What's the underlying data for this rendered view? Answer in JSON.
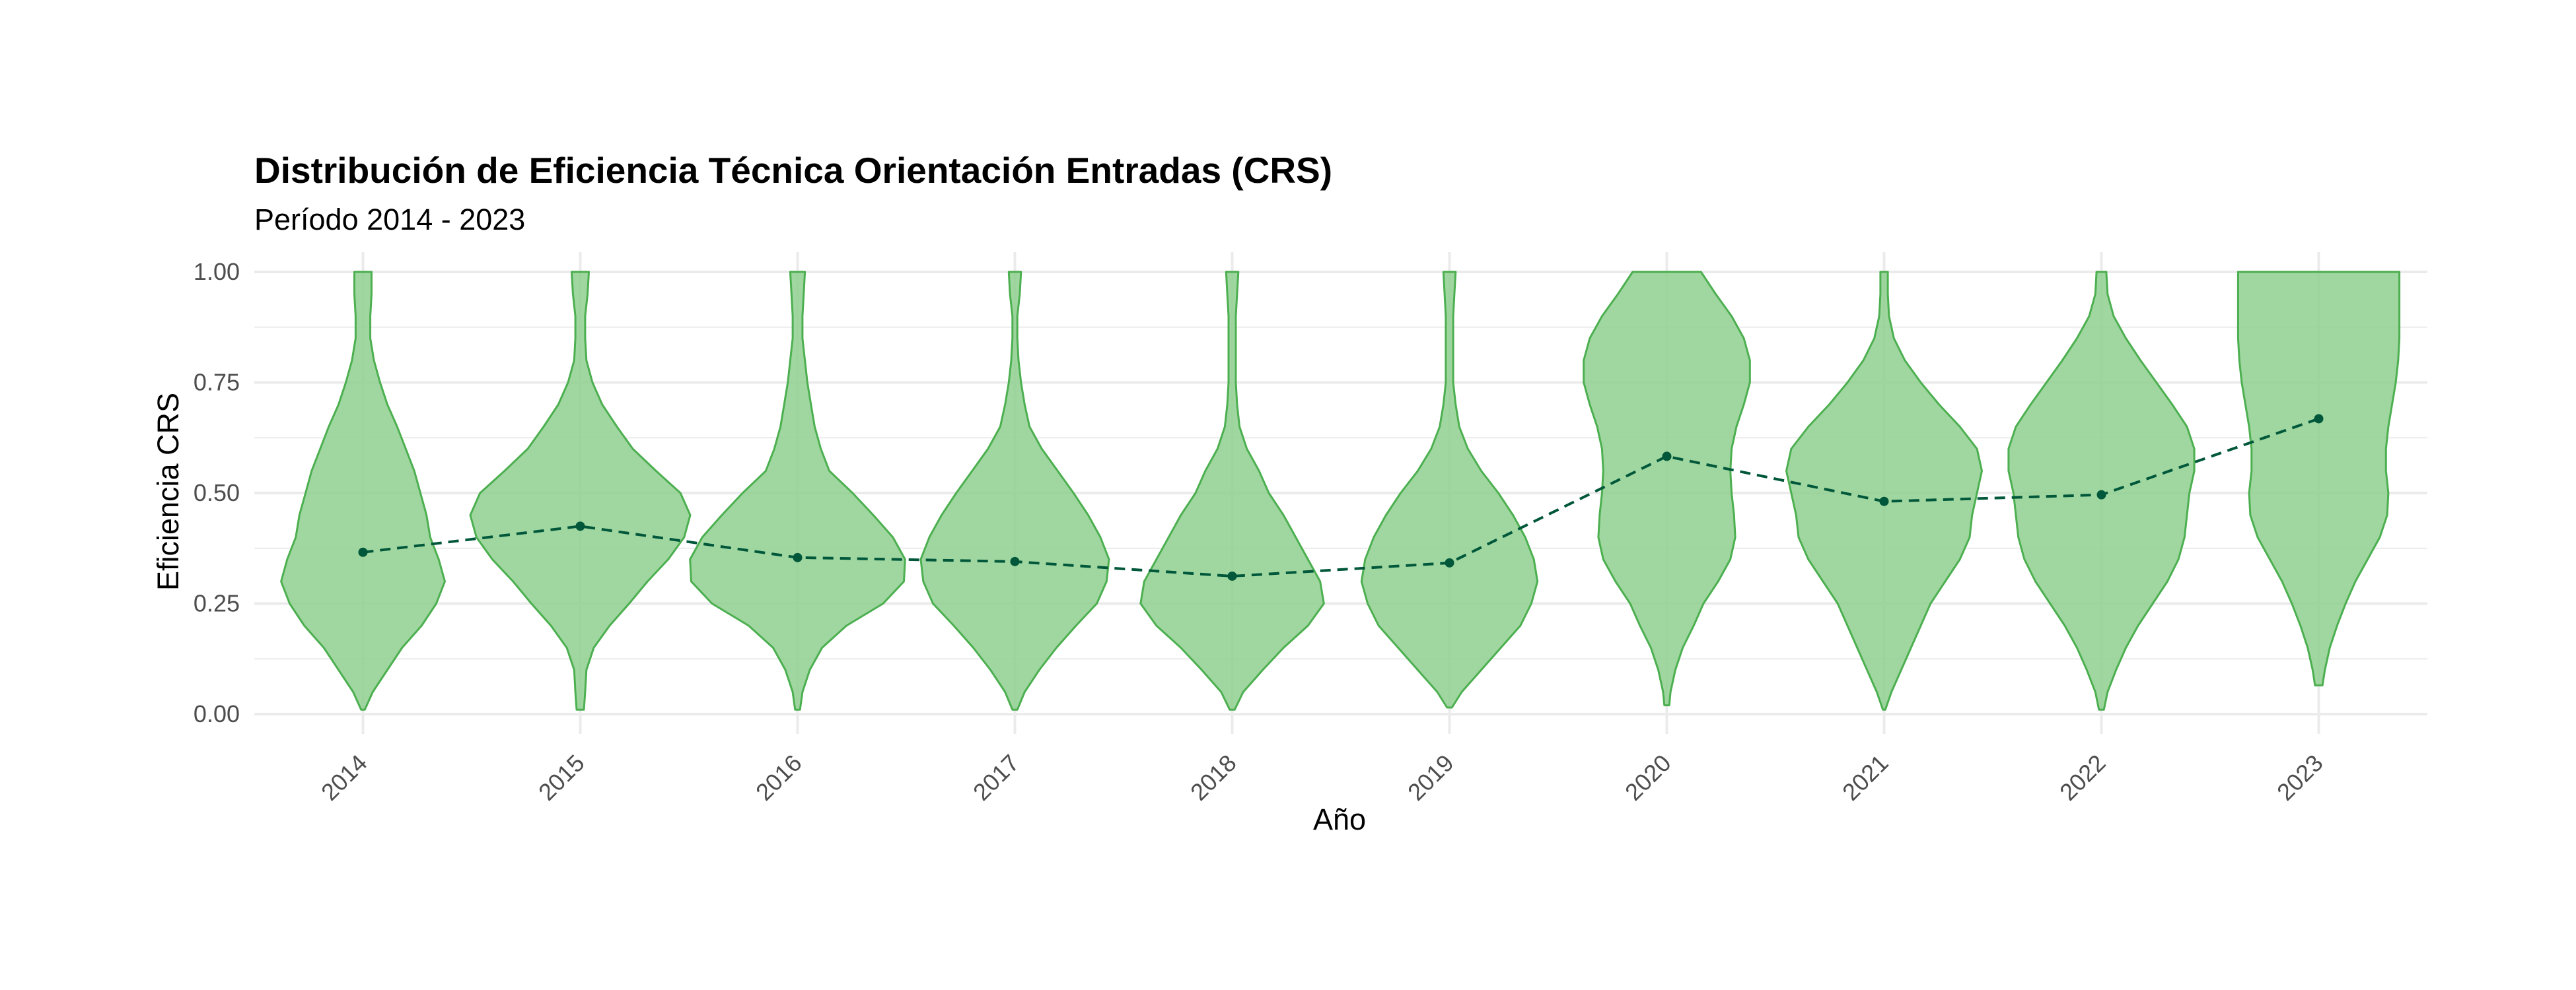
{
  "chart_data": {
    "type": "violin",
    "title": "Distribución de Eficiencia Técnica Orientación Entradas (CRS)",
    "subtitle": "Período 2014 - 2023",
    "xlabel": "Año",
    "ylabel": "Eficiencia CRS",
    "categories": [
      "2014",
      "2015",
      "2016",
      "2017",
      "2018",
      "2019",
      "2020",
      "2021",
      "2022",
      "2023"
    ],
    "ylim": [
      0,
      1
    ],
    "yticks": [
      0,
      0.25,
      0.5,
      0.75,
      1
    ],
    "ytick_labels": [
      "0.00",
      "0.25",
      "0.50",
      "0.75",
      "1.00"
    ],
    "grid": true,
    "colors": {
      "violin_fill": "#8fd08f",
      "violin_stroke": "#4caf50",
      "mean_line": "#00573a",
      "grid": "#ebebeb"
    },
    "mean_series": [
      0.366,
      0.425,
      0.354,
      0.345,
      0.312,
      0.342,
      0.583,
      0.481,
      0.496,
      0.668
    ],
    "violins": [
      {
        "year": "2014",
        "ymin": 0.01,
        "ymax": 1.0,
        "profile": [
          [
            0.01,
            0.015
          ],
          [
            0.05,
            0.08
          ],
          [
            0.1,
            0.2
          ],
          [
            0.15,
            0.32
          ],
          [
            0.2,
            0.48
          ],
          [
            0.25,
            0.6
          ],
          [
            0.3,
            0.67
          ],
          [
            0.35,
            0.62
          ],
          [
            0.4,
            0.55
          ],
          [
            0.45,
            0.52
          ],
          [
            0.5,
            0.47
          ],
          [
            0.55,
            0.42
          ],
          [
            0.6,
            0.35
          ],
          [
            0.65,
            0.28
          ],
          [
            0.7,
            0.2
          ],
          [
            0.75,
            0.14
          ],
          [
            0.8,
            0.09
          ],
          [
            0.85,
            0.06
          ],
          [
            0.9,
            0.06
          ],
          [
            0.95,
            0.07
          ],
          [
            1.0,
            0.07
          ]
        ]
      },
      {
        "year": "2015",
        "ymin": 0.01,
        "ymax": 1.0,
        "profile": [
          [
            0.01,
            0.03
          ],
          [
            0.05,
            0.04
          ],
          [
            0.1,
            0.05
          ],
          [
            0.15,
            0.11
          ],
          [
            0.2,
            0.24
          ],
          [
            0.25,
            0.4
          ],
          [
            0.3,
            0.55
          ],
          [
            0.35,
            0.72
          ],
          [
            0.4,
            0.85
          ],
          [
            0.45,
            0.9
          ],
          [
            0.5,
            0.82
          ],
          [
            0.55,
            0.62
          ],
          [
            0.6,
            0.43
          ],
          [
            0.65,
            0.3
          ],
          [
            0.7,
            0.18
          ],
          [
            0.75,
            0.1
          ],
          [
            0.8,
            0.05
          ],
          [
            0.85,
            0.04
          ],
          [
            0.9,
            0.04
          ],
          [
            0.95,
            0.06
          ],
          [
            1.0,
            0.07
          ]
        ]
      },
      {
        "year": "2016",
        "ymin": 0.01,
        "ymax": 1.0,
        "profile": [
          [
            0.01,
            0.02
          ],
          [
            0.05,
            0.04
          ],
          [
            0.1,
            0.1
          ],
          [
            0.15,
            0.2
          ],
          [
            0.2,
            0.4
          ],
          [
            0.25,
            0.7
          ],
          [
            0.3,
            0.87
          ],
          [
            0.35,
            0.88
          ],
          [
            0.4,
            0.78
          ],
          [
            0.45,
            0.62
          ],
          [
            0.5,
            0.45
          ],
          [
            0.55,
            0.26
          ],
          [
            0.6,
            0.19
          ],
          [
            0.65,
            0.14
          ],
          [
            0.7,
            0.11
          ],
          [
            0.75,
            0.08
          ],
          [
            0.8,
            0.06
          ],
          [
            0.85,
            0.04
          ],
          [
            0.9,
            0.04
          ],
          [
            0.95,
            0.05
          ],
          [
            1.0,
            0.06
          ]
        ]
      },
      {
        "year": "2017",
        "ymin": 0.01,
        "ymax": 1.0,
        "profile": [
          [
            0.01,
            0.02
          ],
          [
            0.05,
            0.08
          ],
          [
            0.1,
            0.2
          ],
          [
            0.15,
            0.34
          ],
          [
            0.2,
            0.5
          ],
          [
            0.25,
            0.67
          ],
          [
            0.3,
            0.75
          ],
          [
            0.35,
            0.77
          ],
          [
            0.4,
            0.7
          ],
          [
            0.45,
            0.6
          ],
          [
            0.5,
            0.48
          ],
          [
            0.55,
            0.35
          ],
          [
            0.6,
            0.22
          ],
          [
            0.65,
            0.12
          ],
          [
            0.7,
            0.08
          ],
          [
            0.75,
            0.05
          ],
          [
            0.8,
            0.03
          ],
          [
            0.85,
            0.02
          ],
          [
            0.9,
            0.02
          ],
          [
            0.95,
            0.04
          ],
          [
            1.0,
            0.05
          ]
        ]
      },
      {
        "year": "2018",
        "ymin": 0.01,
        "ymax": 1.0,
        "profile": [
          [
            0.01,
            0.02
          ],
          [
            0.05,
            0.09
          ],
          [
            0.1,
            0.25
          ],
          [
            0.15,
            0.42
          ],
          [
            0.2,
            0.62
          ],
          [
            0.25,
            0.75
          ],
          [
            0.3,
            0.72
          ],
          [
            0.35,
            0.62
          ],
          [
            0.4,
            0.52
          ],
          [
            0.45,
            0.42
          ],
          [
            0.5,
            0.3
          ],
          [
            0.55,
            0.22
          ],
          [
            0.6,
            0.12
          ],
          [
            0.65,
            0.06
          ],
          [
            0.7,
            0.04
          ],
          [
            0.75,
            0.03
          ],
          [
            0.8,
            0.03
          ],
          [
            0.85,
            0.03
          ],
          [
            0.9,
            0.03
          ],
          [
            0.95,
            0.04
          ],
          [
            1.0,
            0.05
          ]
        ]
      },
      {
        "year": "2019",
        "ymin": 0.015,
        "ymax": 1.0,
        "profile": [
          [
            0.015,
            0.02
          ],
          [
            0.05,
            0.1
          ],
          [
            0.1,
            0.26
          ],
          [
            0.15,
            0.42
          ],
          [
            0.2,
            0.58
          ],
          [
            0.25,
            0.67
          ],
          [
            0.3,
            0.72
          ],
          [
            0.35,
            0.69
          ],
          [
            0.4,
            0.62
          ],
          [
            0.45,
            0.52
          ],
          [
            0.5,
            0.4
          ],
          [
            0.55,
            0.26
          ],
          [
            0.6,
            0.15
          ],
          [
            0.65,
            0.08
          ],
          [
            0.7,
            0.05
          ],
          [
            0.75,
            0.03
          ],
          [
            0.8,
            0.03
          ],
          [
            0.85,
            0.03
          ],
          [
            0.9,
            0.03
          ],
          [
            0.95,
            0.04
          ],
          [
            1.0,
            0.05
          ]
        ]
      },
      {
        "year": "2020",
        "ymin": 0.02,
        "ymax": 1.0,
        "profile": [
          [
            0.02,
            0.02
          ],
          [
            0.05,
            0.03
          ],
          [
            0.1,
            0.07
          ],
          [
            0.15,
            0.13
          ],
          [
            0.2,
            0.22
          ],
          [
            0.25,
            0.3
          ],
          [
            0.3,
            0.42
          ],
          [
            0.35,
            0.52
          ],
          [
            0.4,
            0.56
          ],
          [
            0.45,
            0.55
          ],
          [
            0.5,
            0.53
          ],
          [
            0.55,
            0.52
          ],
          [
            0.6,
            0.53
          ],
          [
            0.65,
            0.57
          ],
          [
            0.7,
            0.63
          ],
          [
            0.75,
            0.68
          ],
          [
            0.8,
            0.68
          ],
          [
            0.85,
            0.63
          ],
          [
            0.9,
            0.53
          ],
          [
            0.95,
            0.4
          ],
          [
            1.0,
            0.28
          ]
        ]
      },
      {
        "year": "2021",
        "ymin": 0.01,
        "ymax": 1.0,
        "profile": [
          [
            0.01,
            0.01
          ],
          [
            0.05,
            0.06
          ],
          [
            0.1,
            0.14
          ],
          [
            0.15,
            0.22
          ],
          [
            0.2,
            0.3
          ],
          [
            0.25,
            0.38
          ],
          [
            0.3,
            0.5
          ],
          [
            0.35,
            0.62
          ],
          [
            0.4,
            0.7
          ],
          [
            0.45,
            0.72
          ],
          [
            0.5,
            0.76
          ],
          [
            0.55,
            0.8
          ],
          [
            0.6,
            0.76
          ],
          [
            0.65,
            0.62
          ],
          [
            0.7,
            0.45
          ],
          [
            0.75,
            0.3
          ],
          [
            0.8,
            0.17
          ],
          [
            0.85,
            0.08
          ],
          [
            0.9,
            0.04
          ],
          [
            0.95,
            0.03
          ],
          [
            1.0,
            0.03
          ]
        ]
      },
      {
        "year": "2022",
        "ymin": 0.01,
        "ymax": 1.0,
        "profile": [
          [
            0.01,
            0.02
          ],
          [
            0.05,
            0.05
          ],
          [
            0.1,
            0.12
          ],
          [
            0.15,
            0.2
          ],
          [
            0.2,
            0.3
          ],
          [
            0.25,
            0.42
          ],
          [
            0.3,
            0.54
          ],
          [
            0.35,
            0.63
          ],
          [
            0.4,
            0.68
          ],
          [
            0.45,
            0.7
          ],
          [
            0.5,
            0.72
          ],
          [
            0.55,
            0.76
          ],
          [
            0.6,
            0.76
          ],
          [
            0.65,
            0.7
          ],
          [
            0.7,
            0.58
          ],
          [
            0.75,
            0.45
          ],
          [
            0.8,
            0.32
          ],
          [
            0.85,
            0.2
          ],
          [
            0.9,
            0.1
          ],
          [
            0.95,
            0.05
          ],
          [
            1.0,
            0.04
          ]
        ]
      },
      {
        "year": "2023",
        "ymin": 0.065,
        "ymax": 1.0,
        "profile": [
          [
            0.065,
            0.03
          ],
          [
            0.1,
            0.05
          ],
          [
            0.15,
            0.09
          ],
          [
            0.2,
            0.15
          ],
          [
            0.25,
            0.22
          ],
          [
            0.3,
            0.3
          ],
          [
            0.35,
            0.4
          ],
          [
            0.4,
            0.5
          ],
          [
            0.45,
            0.56
          ],
          [
            0.5,
            0.57
          ],
          [
            0.55,
            0.55
          ],
          [
            0.6,
            0.55
          ],
          [
            0.65,
            0.57
          ],
          [
            0.7,
            0.6
          ],
          [
            0.75,
            0.63
          ],
          [
            0.8,
            0.65
          ],
          [
            0.85,
            0.66
          ],
          [
            0.9,
            0.66
          ],
          [
            0.95,
            0.66
          ],
          [
            1.0,
            0.66
          ]
        ]
      }
    ]
  }
}
